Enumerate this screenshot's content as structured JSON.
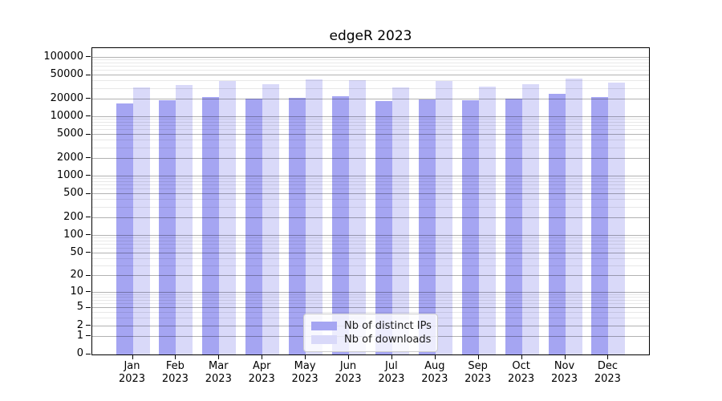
{
  "title": "edgeR 2023",
  "chart_data": {
    "type": "bar",
    "title": "edgeR 2023",
    "categories": [
      "Jan 2023",
      "Feb 2023",
      "Mar 2023",
      "Apr 2023",
      "May 2023",
      "Jun 2023",
      "Jul 2023",
      "Aug 2023",
      "Sep 2023",
      "Oct 2023",
      "Nov 2023",
      "Dec 2023"
    ],
    "x_tick_months": [
      "Jan",
      "Feb",
      "Mar",
      "Apr",
      "May",
      "Jun",
      "Jul",
      "Aug",
      "Sep",
      "Oct",
      "Nov",
      "Dec"
    ],
    "x_tick_year": "2023",
    "series": [
      {
        "name": "Nb of distinct IPs",
        "color": "#a5a5f2",
        "values": [
          16800,
          19200,
          21900,
          20200,
          21000,
          22500,
          18700,
          19700,
          19100,
          20200,
          24300,
          21900
        ]
      },
      {
        "name": "Nb of downloads",
        "color": "#d9d9f9",
        "values": [
          31500,
          34500,
          40600,
          35800,
          43300,
          41400,
          31400,
          40200,
          32100,
          36200,
          44600,
          38100
        ]
      }
    ],
    "ylabel": "",
    "xlabel": "",
    "y_scale": "log10(1+x)",
    "y_ticks": [
      0,
      1,
      2,
      5,
      10,
      20,
      50,
      100,
      200,
      500,
      1000,
      2000,
      5000,
      10000,
      20000,
      50000,
      100000
    ],
    "y_minor_mantissas": [
      3,
      4,
      6,
      7,
      8,
      9
    ],
    "ylim": [
      0,
      145000
    ],
    "grid": true,
    "legend_position": "lower center",
    "colors": {
      "major_grid": "#b4b4b4",
      "minor_grid": "#e8e8e8",
      "axis": "#000000",
      "background": "#ffffff"
    }
  }
}
